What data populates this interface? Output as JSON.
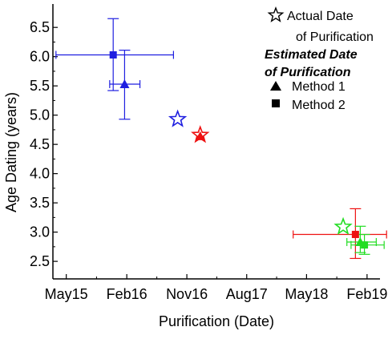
{
  "chart_data": {
    "type": "scatter",
    "title": "",
    "xlabel": "Purification (Date)",
    "ylabel": "Age Dating (years)",
    "xlim": [
      "2015-03-01",
      "2019-04-01"
    ],
    "ylim": [
      2.2,
      6.9
    ],
    "x_ticks": [
      {
        "date": "2015-05-01",
        "label": "May15"
      },
      {
        "date": "2016-02-01",
        "label": "Feb16"
      },
      {
        "date": "2016-11-01",
        "label": "Nov16"
      },
      {
        "date": "2017-08-01",
        "label": "Aug17"
      },
      {
        "date": "2018-05-01",
        "label": "May18"
      },
      {
        "date": "2019-02-01",
        "label": "Feb19"
      }
    ],
    "y_ticks": [
      "2.5",
      "3.0",
      "3.5",
      "4.0",
      "4.5",
      "5.0",
      "5.5",
      "6.0",
      "6.5"
    ],
    "grid": false,
    "legend_position": "top-right",
    "legend": {
      "actual_label": [
        "Actual Date",
        "of Purification"
      ],
      "estimated_title": [
        "Estimated Date",
        "of Purification"
      ],
      "method1_label": "Method 1",
      "method2_label": "Method 2"
    },
    "colors": {
      "blue": "#1f1fe0",
      "red": "#ee1111",
      "green": "#22dd22"
    },
    "series": [
      {
        "sample": "blue",
        "color": "#1f1fe0",
        "marker": "star",
        "x": "2016-09-20",
        "y": 4.93
      },
      {
        "sample": "blue",
        "color": "#1f1fe0",
        "marker": "triangle",
        "x": "2016-01-22",
        "y": 5.53,
        "x_err": [
          "2015-11-15",
          "2016-04-01"
        ],
        "y_err": [
          4.93,
          6.11
        ]
      },
      {
        "sample": "blue",
        "color": "#1f1fe0",
        "marker": "square",
        "x": "2015-12-01",
        "y": 6.03,
        "x_err": [
          "2015-03-15",
          "2016-09-01"
        ],
        "y_err": [
          5.42,
          6.65
        ]
      },
      {
        "sample": "red",
        "color": "#ee1111",
        "marker": "star",
        "x": "2017-01-01",
        "y": 4.66
      },
      {
        "sample": "red",
        "color": "#ee1111",
        "marker": "triangle",
        "x": "2017-01-01",
        "y": 4.64
      },
      {
        "sample": "red",
        "color": "#ee1111",
        "marker": "square",
        "x": "2018-12-10",
        "y": 2.96,
        "x_err": [
          "2018-03-01",
          "2019-05-01"
        ],
        "y_err": [
          2.55,
          3.4
        ]
      },
      {
        "sample": "green",
        "color": "#22dd22",
        "marker": "star",
        "x": "2018-10-15",
        "y": 3.09
      },
      {
        "sample": "green",
        "color": "#22dd22",
        "marker": "triangle",
        "x": "2019-01-01",
        "y": 2.83,
        "x_err": [
          "2018-11-01",
          "2019-03-15"
        ],
        "y_err": [
          2.65,
          3.1
        ]
      },
      {
        "sample": "green",
        "color": "#22dd22",
        "marker": "square",
        "x": "2019-01-20",
        "y": 2.78,
        "x_err": [
          "2018-11-20",
          "2019-04-20"
        ],
        "y_err": [
          2.62,
          2.96
        ]
      }
    ]
  }
}
